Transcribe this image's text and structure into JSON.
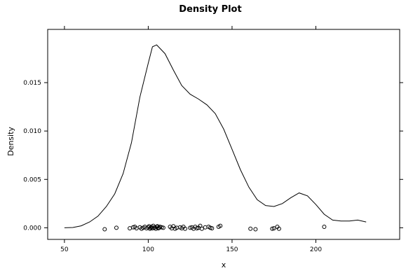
{
  "chart_data": {
    "type": "line",
    "title": "Density Plot",
    "xlabel": "x",
    "ylabel": "Density",
    "xlim": [
      40,
      250
    ],
    "ylim": [
      -0.0012,
      0.0205
    ],
    "x_ticks": [
      50,
      100,
      150,
      200
    ],
    "y_ticks": [
      0.0,
      0.005,
      0.01,
      0.015
    ],
    "x_tick_labels": [
      "50",
      "100",
      "150",
      "200"
    ],
    "y_tick_labels": [
      "0.000",
      "0.005",
      "0.010",
      "0.015"
    ],
    "grid": false,
    "series": [
      {
        "type": "line",
        "x": [
          50,
          55,
          60,
          65,
          70,
          75,
          80,
          85,
          90,
          95,
          100,
          102.5,
          105,
          110,
          115,
          120,
          125,
          130,
          135,
          140,
          145,
          150,
          155,
          160,
          165,
          170,
          175,
          180,
          185,
          190,
          195,
          200,
          205,
          210,
          215,
          220,
          225,
          230
        ],
        "y": [
          0.0,
          3e-05,
          0.0002,
          0.0006,
          0.0012,
          0.0022,
          0.0035,
          0.0056,
          0.0088,
          0.0135,
          0.017,
          0.0187,
          0.0189,
          0.018,
          0.0163,
          0.0147,
          0.0138,
          0.0133,
          0.0127,
          0.0118,
          0.0102,
          0.0081,
          0.006,
          0.0042,
          0.0029,
          0.0023,
          0.0022,
          0.0025,
          0.0031,
          0.0036,
          0.0033,
          0.0024,
          0.0014,
          0.0008,
          0.0007,
          0.0007,
          0.0008,
          0.0006
        ]
      },
      {
        "type": "scatter",
        "marker": "open-circle",
        "x": [
          74,
          81,
          89,
          91,
          92,
          93,
          95,
          96,
          97,
          98,
          99,
          100,
          100.5,
          101,
          101.5,
          102,
          102.5,
          103,
          103.5,
          104,
          104.5,
          105,
          105.5,
          106,
          106.5,
          107,
          108,
          109,
          113,
          114,
          115,
          116,
          117,
          119,
          120,
          121,
          122,
          125,
          126,
          127,
          128,
          129,
          130,
          131,
          132,
          134,
          136,
          137,
          138,
          142,
          143,
          161,
          164,
          174,
          175,
          177,
          178,
          205
        ],
        "y": [
          -0.00015,
          0.0,
          -5e-05,
          5e-05,
          0.0001,
          -5e-05,
          5e-05,
          -0.0001,
          0.0,
          0.0001,
          -5e-05,
          5e-05,
          0.00015,
          -0.0001,
          0.0,
          0.0001,
          -5e-05,
          0.0002,
          0.0,
          5e-05,
          -0.0001,
          0.0001,
          0.00015,
          -5e-05,
          0.0,
          0.0001,
          5e-05,
          0.0,
          0.0001,
          -5e-05,
          0.00015,
          -0.0001,
          0.0,
          5e-05,
          -5e-05,
          0.0001,
          -0.0001,
          0.0,
          5e-05,
          -0.0001,
          0.0001,
          -5e-05,
          0.0,
          0.0002,
          -0.0001,
          5e-05,
          0.0001,
          0.0,
          -5e-05,
          0.0001,
          0.0002,
          -0.0001,
          -0.00015,
          -0.0001,
          -5e-05,
          0.0001,
          -0.0001,
          0.0001
        ]
      }
    ]
  }
}
